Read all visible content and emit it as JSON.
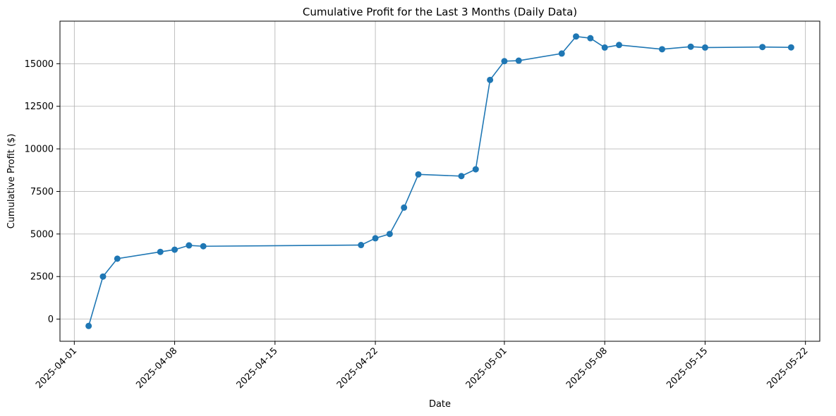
{
  "chart_data": {
    "type": "line",
    "title": "Cumulative Profit for the Last 3 Months (Daily Data)",
    "xlabel": "Date",
    "ylabel": "Cumulative Profit ($)",
    "x_ticks": [
      "2025-04-01",
      "2025-04-08",
      "2025-04-15",
      "2025-04-22",
      "2025-05-01",
      "2025-05-08",
      "2025-05-15",
      "2025-05-22"
    ],
    "y_ticks": [
      0,
      2500,
      5000,
      7500,
      10000,
      12500,
      15000
    ],
    "xlim": [
      "2025-03-31",
      "2025-05-23"
    ],
    "ylim": [
      -1300,
      17500
    ],
    "grid": true,
    "series": [
      {
        "color": "#1f77b4",
        "marker": "circle",
        "points": [
          {
            "x": "2025-04-02",
            "y": -400
          },
          {
            "x": "2025-04-03",
            "y": 2500
          },
          {
            "x": "2025-04-04",
            "y": 3550
          },
          {
            "x": "2025-04-07",
            "y": 3950
          },
          {
            "x": "2025-04-08",
            "y": 4080
          },
          {
            "x": "2025-04-09",
            "y": 4330
          },
          {
            "x": "2025-04-10",
            "y": 4280
          },
          {
            "x": "2025-04-21",
            "y": 4350
          },
          {
            "x": "2025-04-22",
            "y": 4750
          },
          {
            "x": "2025-04-23",
            "y": 5000
          },
          {
            "x": "2025-04-24",
            "y": 6550
          },
          {
            "x": "2025-04-25",
            "y": 8500
          },
          {
            "x": "2025-04-28",
            "y": 8400
          },
          {
            "x": "2025-04-29",
            "y": 8800
          },
          {
            "x": "2025-04-30",
            "y": 14050
          },
          {
            "x": "2025-05-01",
            "y": 15150
          },
          {
            "x": "2025-05-02",
            "y": 15180
          },
          {
            "x": "2025-05-05",
            "y": 15600
          },
          {
            "x": "2025-05-06",
            "y": 16600
          },
          {
            "x": "2025-05-07",
            "y": 16500
          },
          {
            "x": "2025-05-08",
            "y": 15950
          },
          {
            "x": "2025-05-09",
            "y": 16100
          },
          {
            "x": "2025-05-12",
            "y": 15850
          },
          {
            "x": "2025-05-14",
            "y": 16000
          },
          {
            "x": "2025-05-15",
            "y": 15950
          },
          {
            "x": "2025-05-19",
            "y": 15980
          },
          {
            "x": "2025-05-21",
            "y": 15960
          }
        ]
      }
    ]
  }
}
